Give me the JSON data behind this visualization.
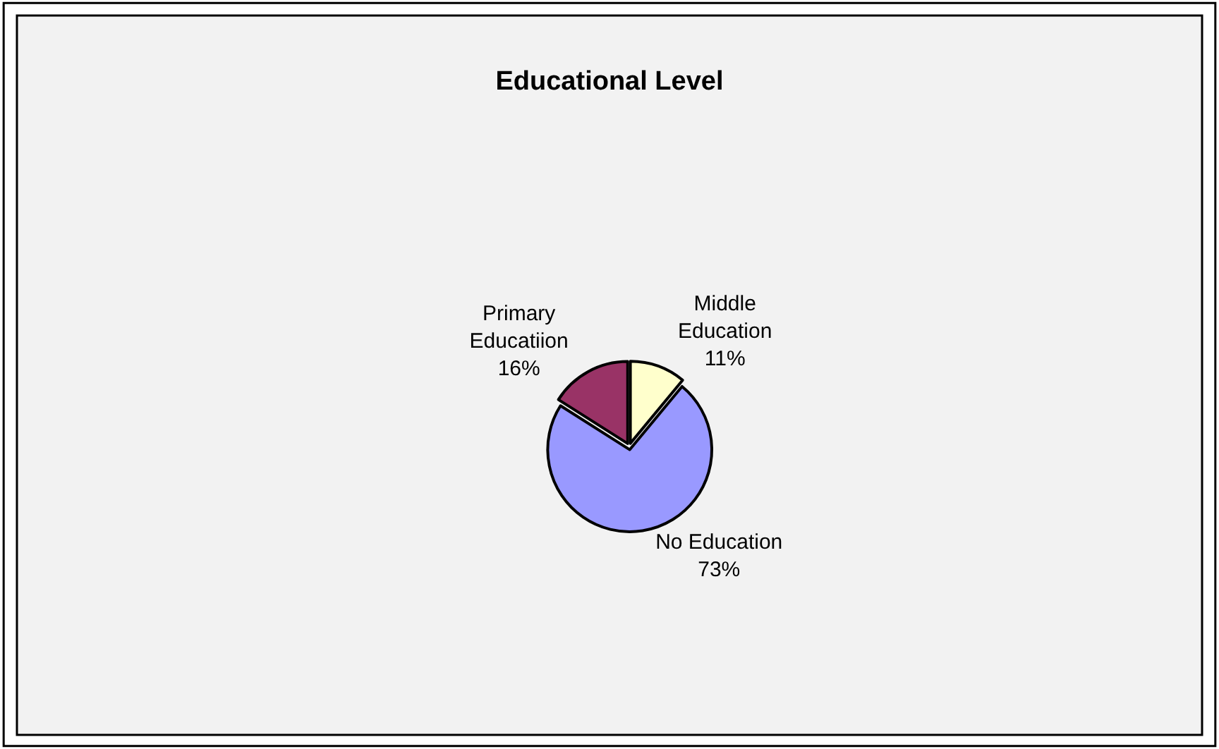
{
  "chart_data": {
    "type": "pie",
    "title": "Educational Level",
    "categories": [
      "Middle Education",
      "No Education",
      "Primary Educatiion"
    ],
    "values": [
      11,
      73,
      16
    ],
    "colors": [
      "#ffffcc",
      "#9999ff",
      "#993366"
    ],
    "value_labels": [
      "11%",
      "73%",
      "16%"
    ],
    "legend": false
  }
}
